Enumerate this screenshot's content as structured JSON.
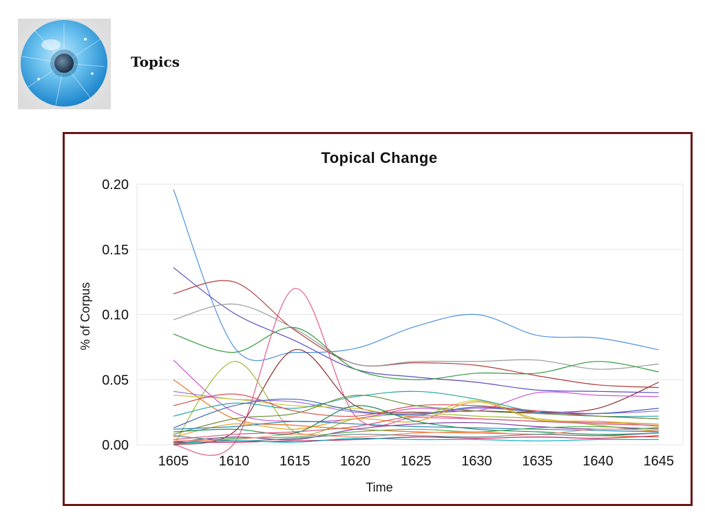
{
  "header": {
    "title": "Topics",
    "logo_icon": "eye-iris-logo-icon"
  },
  "colors": {
    "frame": "#6b1414",
    "grid": "#e4e4e4"
  },
  "chart_data": {
    "type": "line",
    "title": "Topical Change",
    "xlabel": "Time",
    "ylabel": "% of Corpus",
    "x": [
      1605,
      1610,
      1615,
      1620,
      1625,
      1630,
      1635,
      1640,
      1645
    ],
    "xlim": [
      1602,
      1647
    ],
    "ylim": [
      0,
      0.2
    ],
    "yticks": [
      "0.00",
      "0.05",
      "0.10",
      "0.15",
      "0.20"
    ],
    "xticks": [
      "1605",
      "1610",
      "1615",
      "1620",
      "1625",
      "1630",
      "1635",
      "1640",
      "1645"
    ],
    "grid": true,
    "legend": "none",
    "series": [
      {
        "color": "#4a8fde",
        "values": [
          0.196,
          0.075,
          0.071,
          0.074,
          0.091,
          0.1,
          0.084,
          0.082,
          0.073
        ]
      },
      {
        "color": "#5a4bbf",
        "values": [
          0.136,
          0.101,
          0.08,
          0.058,
          0.052,
          0.048,
          0.042,
          0.041,
          0.04
        ]
      },
      {
        "color": "#b03a3a",
        "values": [
          0.116,
          0.125,
          0.088,
          0.062,
          0.063,
          0.061,
          0.053,
          0.046,
          0.044
        ]
      },
      {
        "color": "#999999",
        "values": [
          0.096,
          0.108,
          0.089,
          0.062,
          0.064,
          0.064,
          0.065,
          0.058,
          0.062
        ]
      },
      {
        "color": "#2e9a3a",
        "values": [
          0.085,
          0.071,
          0.09,
          0.058,
          0.05,
          0.055,
          0.055,
          0.064,
          0.056
        ]
      },
      {
        "color": "#e05a8a",
        "values": [
          0.0,
          0.001,
          0.12,
          0.022,
          0.021,
          0.02,
          0.018,
          0.017,
          0.016
        ]
      },
      {
        "color": "#8a2a2a",
        "values": [
          0.0,
          0.01,
          0.073,
          0.03,
          0.025,
          0.026,
          0.025,
          0.028,
          0.048
        ]
      },
      {
        "color": "#9ab832",
        "values": [
          0.0,
          0.064,
          0.01,
          0.02,
          0.024,
          0.022,
          0.02,
          0.015,
          0.01
        ]
      },
      {
        "color": "#cc4fd1",
        "values": [
          0.065,
          0.025,
          0.018,
          0.02,
          0.028,
          0.026,
          0.04,
          0.038,
          0.037
        ]
      },
      {
        "color": "#e8731f",
        "values": [
          0.05,
          0.02,
          0.015,
          0.012,
          0.01,
          0.009,
          0.008,
          0.007,
          0.006
        ]
      },
      {
        "color": "#9b6be0",
        "values": [
          0.041,
          0.035,
          0.033,
          0.025,
          0.024,
          0.028,
          0.026,
          0.024,
          0.026
        ]
      },
      {
        "color": "#c8c832",
        "values": [
          0.038,
          0.035,
          0.03,
          0.028,
          0.022,
          0.034,
          0.02,
          0.018,
          0.016
        ]
      },
      {
        "color": "#2aa3a3",
        "values": [
          0.022,
          0.032,
          0.028,
          0.037,
          0.041,
          0.035,
          0.025,
          0.022,
          0.022
        ]
      },
      {
        "color": "#d94b4b",
        "values": [
          0.03,
          0.039,
          0.026,
          0.022,
          0.03,
          0.03,
          0.026,
          0.022,
          0.02
        ]
      },
      {
        "color": "#3a66b0",
        "values": [
          0.013,
          0.03,
          0.035,
          0.026,
          0.023,
          0.029,
          0.025,
          0.024,
          0.028
        ]
      },
      {
        "color": "#6c8d3a",
        "values": [
          0.008,
          0.02,
          0.024,
          0.038,
          0.03,
          0.026,
          0.024,
          0.022,
          0.02
        ]
      },
      {
        "color": "#e0a020",
        "values": [
          0.006,
          0.016,
          0.012,
          0.02,
          0.018,
          0.033,
          0.019,
          0.018,
          0.014
        ]
      },
      {
        "color": "#2c7fb8",
        "values": [
          0.012,
          0.014,
          0.018,
          0.016,
          0.014,
          0.013,
          0.012,
          0.011,
          0.01
        ]
      },
      {
        "color": "#1a8a5a",
        "values": [
          0.01,
          0.012,
          0.009,
          0.03,
          0.018,
          0.012,
          0.01,
          0.008,
          0.009
        ]
      },
      {
        "color": "#d4577b",
        "values": [
          0.004,
          0.008,
          0.01,
          0.014,
          0.022,
          0.02,
          0.018,
          0.016,
          0.015
        ]
      },
      {
        "color": "#7a3fa0",
        "values": [
          0.002,
          0.006,
          0.004,
          0.012,
          0.016,
          0.017,
          0.014,
          0.012,
          0.013
        ]
      },
      {
        "color": "#4caf50",
        "values": [
          0.001,
          0.005,
          0.006,
          0.01,
          0.012,
          0.01,
          0.013,
          0.014,
          0.012
        ]
      },
      {
        "color": "#ff8a65",
        "values": [
          0.003,
          0.004,
          0.008,
          0.006,
          0.009,
          0.01,
          0.008,
          0.012,
          0.011
        ]
      },
      {
        "color": "#607d8b",
        "values": [
          0.007,
          0.003,
          0.005,
          0.008,
          0.007,
          0.006,
          0.008,
          0.007,
          0.009
        ]
      },
      {
        "color": "#c2185b",
        "values": [
          0.002,
          0.002,
          0.003,
          0.004,
          0.006,
          0.005,
          0.006,
          0.005,
          0.007
        ]
      },
      {
        "color": "#00acc1",
        "values": [
          0.001,
          0.003,
          0.002,
          0.005,
          0.004,
          0.004,
          0.003,
          0.004,
          0.004
        ]
      }
    ]
  }
}
